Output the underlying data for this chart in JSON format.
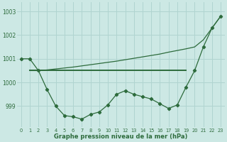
{
  "hours": [
    0,
    1,
    2,
    3,
    4,
    5,
    6,
    7,
    8,
    9,
    10,
    11,
    12,
    13,
    14,
    15,
    16,
    17,
    18,
    19,
    20,
    21,
    22,
    23
  ],
  "line_marked": [
    1001.0,
    1001.0,
    1000.5,
    999.7,
    999.0,
    998.6,
    998.55,
    998.45,
    998.65,
    998.75,
    999.05,
    999.5,
    999.65,
    999.5,
    999.4,
    999.3,
    999.1,
    998.9,
    999.05,
    999.8,
    1000.5,
    1001.5,
    1002.3,
    1002.8
  ],
  "line_flat_x": [
    1,
    2,
    3,
    4,
    5,
    6,
    7,
    8,
    9,
    10,
    11,
    12,
    13,
    14,
    15,
    16,
    17,
    18,
    19
  ],
  "line_flat_y": [
    1000.5,
    1000.5,
    1000.5,
    1000.5,
    1000.5,
    1000.5,
    1000.5,
    1000.5,
    1000.5,
    1000.5,
    1000.5,
    1000.5,
    1000.5,
    1000.5,
    1000.5,
    1000.5,
    1000.5,
    1000.5,
    1000.5
  ],
  "line_up_x": [
    1,
    2,
    3,
    4,
    5,
    6,
    7,
    8,
    9,
    10,
    11,
    12,
    13,
    14,
    15,
    16,
    17,
    18,
    19,
    20,
    21,
    22,
    23
  ],
  "line_up_y": [
    1000.5,
    1000.5,
    1000.53,
    1000.57,
    1000.61,
    1000.65,
    1000.7,
    1000.75,
    1000.8,
    1000.85,
    1000.9,
    1000.96,
    1001.02,
    1001.08,
    1001.14,
    1001.2,
    1001.28,
    1001.35,
    1001.42,
    1001.5,
    1001.8,
    1002.3,
    1002.8
  ],
  "bg_color": "#cce8e4",
  "grid_color": "#b0d4d0",
  "line_color": "#2d6b3c",
  "ylabel_values": [
    999,
    1000,
    1001,
    1002,
    1003
  ],
  "xlabel": "Graphe pression niveau de la mer (hPa)",
  "ylim": [
    998.1,
    1003.4
  ],
  "xlim": [
    -0.5,
    23.5
  ]
}
